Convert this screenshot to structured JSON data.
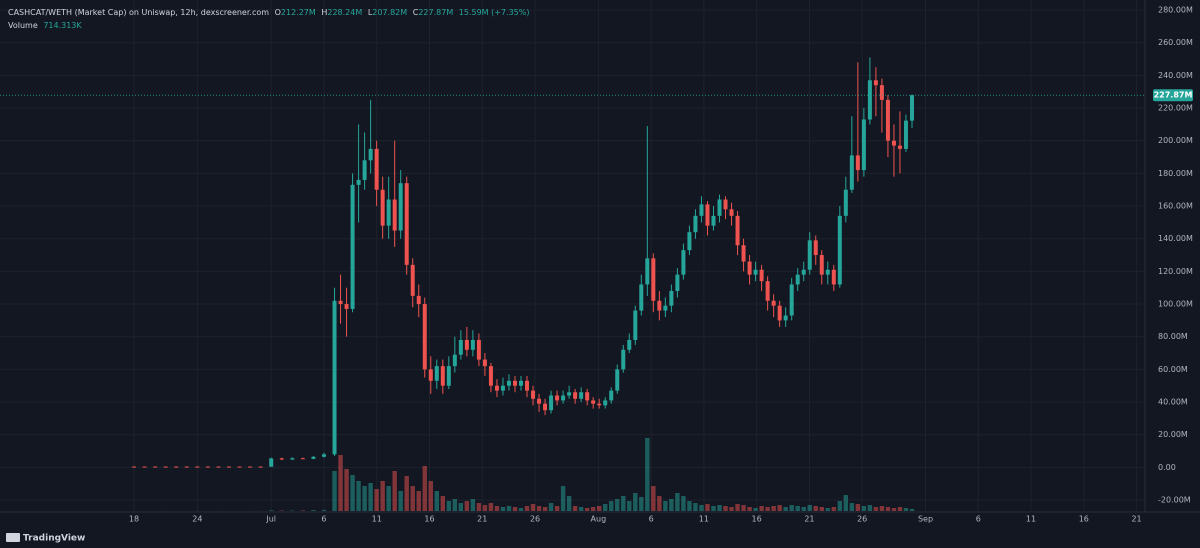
{
  "chart_data": {
    "type": "candlestick",
    "title": "CASHCAT/WETH (Market Cap) on Uniswap, 12h, dexscreener.com",
    "volume_title": "Volume",
    "legend_keys": {
      "open": "O",
      "high": "H",
      "low": "L",
      "close": "C"
    },
    "last_labels": {
      "open": "212.27M",
      "high": "228.24M",
      "low": "207.82M",
      "close": "227.87M",
      "change": "15.59M (+7.35%)",
      "volume": "714.313K"
    },
    "branding": "TradingView",
    "up_color": "#26a69a",
    "down_color": "#ef5350",
    "grid": true,
    "x": [
      0,
      1,
      2,
      3,
      4,
      5,
      6,
      7,
      8,
      9,
      10,
      11,
      12,
      13,
      14,
      15,
      16,
      17,
      18,
      19.0,
      19.57,
      20.14,
      20.71,
      21.28,
      21.85,
      22.42,
      22.99,
      23.56,
      24.13,
      24.7,
      25.27,
      25.84,
      26.41,
      26.98,
      27.55,
      28.12,
      28.69,
      29.26,
      29.83,
      30.4,
      30.97,
      31.54,
      32.11,
      32.68,
      33.25,
      33.82,
      34.39,
      34.96,
      35.53,
      36.1,
      36.67,
      37.24,
      37.81,
      38.38,
      38.95,
      39.52,
      40.09,
      40.66,
      41.23,
      41.8,
      42.37,
      42.94,
      43.51,
      44.08,
      44.65,
      45.22,
      45.79,
      46.36,
      46.93,
      47.5,
      48.07,
      48.64,
      49.21,
      49.78,
      50.35,
      50.92,
      51.49,
      52.06,
      52.63,
      53.2,
      53.77,
      54.34,
      54.91,
      55.48,
      56.05,
      56.62,
      57.19,
      57.76,
      58.33,
      58.9,
      59.47,
      60.04,
      60.61,
      61.18,
      61.75,
      62.32,
      62.89,
      63.46,
      64.03,
      64.6,
      65.17,
      65.74,
      66.31,
      66.88,
      67.45,
      68.02,
      68.59,
      69.16,
      69.73,
      70.3,
      70.87,
      71.44,
      72.01,
      72.58,
      73.15,
      73.72
    ],
    "open": [
      0.5,
      0.5,
      0.5,
      0.5,
      0.5,
      0.5,
      0.5,
      0.5,
      0.5,
      0.5,
      0.5,
      0.5,
      0.5,
      0.4,
      5.5,
      4.8,
      5.6,
      5.2,
      6.5,
      8,
      102,
      100,
      97,
      173,
      176,
      188,
      195,
      170,
      148,
      164,
      145,
      174,
      124,
      105,
      100,
      60,
      53,
      62,
      50,
      62,
      69,
      78,
      72,
      78,
      66,
      62,
      50,
      47,
      50,
      53,
      50,
      53,
      47,
      42,
      39,
      35,
      44,
      41,
      44,
      46,
      42,
      46,
      41,
      39,
      38,
      41,
      47,
      60,
      72,
      78,
      96,
      112,
      128,
      102,
      96,
      99,
      108,
      118,
      133,
      144,
      154,
      161,
      148,
      154,
      164,
      158,
      154,
      136,
      126,
      118,
      121,
      114,
      102,
      99,
      90,
      93,
      112,
      118,
      121,
      139,
      130,
      118,
      121,
      112,
      154,
      170,
      191,
      182,
      213,
      237,
      234,
      225,
      200,
      197,
      195,
      212.27
    ],
    "high": [
      0.6,
      0.6,
      0.6,
      0.6,
      0.6,
      0.6,
      0.6,
      0.6,
      0.6,
      0.6,
      0.6,
      0.6,
      0.6,
      6,
      6,
      6.2,
      6,
      7,
      9,
      110,
      118,
      110,
      180,
      210,
      205,
      225,
      200,
      178,
      178,
      200,
      182,
      178,
      128,
      112,
      104,
      68,
      66,
      66,
      68,
      80,
      84,
      86,
      84,
      82,
      70,
      64,
      54,
      55,
      57,
      56,
      56,
      56,
      50,
      45,
      42,
      47,
      47,
      47,
      50,
      48,
      49,
      48,
      43,
      42,
      43,
      49,
      63,
      75,
      82,
      99,
      118,
      209,
      131,
      108,
      104,
      112,
      122,
      137,
      148,
      158,
      166,
      163,
      160,
      167,
      166,
      162,
      157,
      140,
      130,
      126,
      124,
      117,
      106,
      102,
      98,
      116,
      122,
      126,
      144,
      142,
      133,
      126,
      124,
      160,
      178,
      215,
      248,
      220,
      251,
      245,
      238,
      228,
      210,
      218,
      216,
      228.24
    ],
    "low": [
      0.3,
      0.3,
      0.3,
      0.3,
      0.3,
      0.3,
      0.3,
      0.3,
      0.3,
      0.3,
      0.3,
      0.3,
      0.3,
      0.4,
      4.5,
      4.6,
      5,
      5,
      6,
      7,
      88,
      80,
      95,
      150,
      170,
      180,
      160,
      140,
      140,
      135,
      140,
      118,
      98,
      92,
      55,
      45,
      48,
      45,
      48,
      58,
      66,
      68,
      68,
      62,
      56,
      46,
      43,
      44,
      47,
      46,
      47,
      43,
      38,
      34,
      32,
      33,
      38,
      39,
      42,
      39,
      40,
      38,
      36,
      36,
      36,
      39,
      45,
      58,
      70,
      75,
      93,
      105,
      95,
      90,
      92,
      95,
      104,
      115,
      130,
      140,
      150,
      142,
      145,
      150,
      152,
      148,
      130,
      120,
      112,
      114,
      108,
      96,
      92,
      86,
      86,
      90,
      108,
      114,
      118,
      124,
      112,
      112,
      108,
      110,
      150,
      168,
      175,
      178,
      210,
      215,
      205,
      190,
      178,
      180,
      193,
      207.82
    ],
    "close": [
      0.4,
      0.4,
      0.4,
      0.4,
      0.4,
      0.4,
      0.4,
      0.4,
      0.4,
      0.4,
      0.4,
      0.4,
      0.4,
      5.5,
      4.8,
      5.6,
      5.2,
      6.5,
      8,
      102,
      100,
      97,
      173,
      176,
      188,
      195,
      170,
      148,
      164,
      145,
      174,
      124,
      105,
      100,
      60,
      53,
      62,
      50,
      62,
      69,
      78,
      72,
      78,
      66,
      62,
      50,
      47,
      50,
      53,
      50,
      53,
      47,
      42,
      39,
      35,
      44,
      41,
      44,
      46,
      42,
      46,
      41,
      39,
      38,
      41,
      47,
      60,
      72,
      78,
      96,
      112,
      128,
      102,
      96,
      99,
      108,
      118,
      133,
      144,
      154,
      161,
      148,
      154,
      164,
      158,
      154,
      136,
      126,
      118,
      121,
      114,
      102,
      99,
      90,
      93,
      112,
      118,
      121,
      139,
      130,
      118,
      121,
      112,
      154,
      170,
      191,
      182,
      213,
      237,
      234,
      225,
      200,
      197,
      195,
      212.27,
      227.87
    ],
    "volume": [
      20,
      15,
      10,
      20,
      15,
      10,
      25,
      15,
      20,
      10,
      15,
      20,
      30,
      250,
      180,
      150,
      200,
      300,
      400,
      14000,
      19600,
      14700,
      12600,
      10500,
      8750,
      9800,
      7700,
      10500,
      8750,
      14000,
      7000,
      12250,
      8750,
      7000,
      15750,
      10500,
      7000,
      5250,
      3500,
      4200,
      2800,
      3500,
      4200,
      2800,
      2100,
      2800,
      1750,
      1400,
      1750,
      1400,
      1050,
      1750,
      2450,
      1750,
      1400,
      2800,
      1750,
      8750,
      5250,
      1750,
      1400,
      1050,
      1400,
      1750,
      2450,
      3500,
      4200,
      5250,
      3500,
      6300,
      4900,
      25550,
      8750,
      5250,
      3500,
      4200,
      6300,
      5250,
      3500,
      2800,
      2100,
      2450,
      1750,
      2100,
      1750,
      1400,
      2450,
      2100,
      1400,
      1050,
      1750,
      1400,
      1750,
      2100,
      1400,
      2100,
      1750,
      1400,
      2100,
      1750,
      1400,
      1050,
      1400,
      3500,
      5600,
      2800,
      2450,
      1750,
      2100,
      1400,
      1750,
      1400,
      1050,
      1400,
      1050,
      714.313
    ],
    "xlim": [
      -12.7,
      95.8
    ],
    "xticks": [
      {
        "value": 0,
        "label": "18"
      },
      {
        "value": 6,
        "label": "24"
      },
      {
        "value": 13,
        "label": "Jul"
      },
      {
        "value": 18,
        "label": "6"
      },
      {
        "value": 23,
        "label": "11"
      },
      {
        "value": 28,
        "label": "16"
      },
      {
        "value": 33,
        "label": "21"
      },
      {
        "value": 38,
        "label": "26"
      },
      {
        "value": 44,
        "label": "Aug"
      },
      {
        "value": 49,
        "label": "6"
      },
      {
        "value": 54,
        "label": "11"
      },
      {
        "value": 59,
        "label": "16"
      },
      {
        "value": 64,
        "label": "21"
      },
      {
        "value": 69,
        "label": "26"
      },
      {
        "value": 75,
        "label": "Sep"
      },
      {
        "value": 80,
        "label": "6"
      },
      {
        "value": 85,
        "label": "11"
      },
      {
        "value": 90,
        "label": "16"
      },
      {
        "value": 95,
        "label": "21"
      }
    ],
    "ylim": [
      -26.7,
      283.7
    ],
    "yticks": [
      {
        "value": 280,
        "label": "280.00M"
      },
      {
        "value": 260,
        "label": "260.00M"
      },
      {
        "value": 240,
        "label": "240.00M"
      },
      {
        "value": 220,
        "label": "220.00M"
      },
      {
        "value": 200,
        "label": "200.00M"
      },
      {
        "value": 180,
        "label": "180.00M"
      },
      {
        "value": 160,
        "label": "160.00M"
      },
      {
        "value": 140,
        "label": "140.00M"
      },
      {
        "value": 120,
        "label": "120.00M"
      },
      {
        "value": 100,
        "label": "100.00M"
      },
      {
        "value": 80,
        "label": "80.00M"
      },
      {
        "value": 60,
        "label": "60.00M"
      },
      {
        "value": 40,
        "label": "40.00M"
      },
      {
        "value": 20,
        "label": "20.00M"
      },
      {
        "value": 0,
        "label": "0.00"
      },
      {
        "value": -20,
        "label": "-20.00M"
      }
    ]
  }
}
